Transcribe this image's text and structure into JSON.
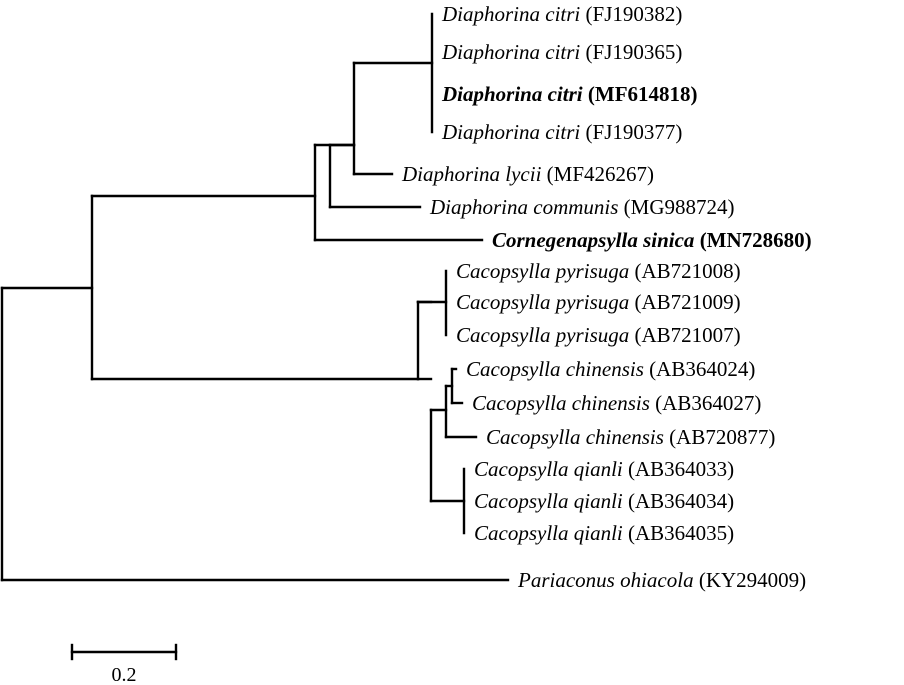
{
  "tree": {
    "leaves": [
      {
        "id": "dc1",
        "name": "Diaphorina citri",
        "accession": "(FJ190382)",
        "bold": false
      },
      {
        "id": "dc2",
        "name": "Diaphorina citri",
        "accession": "(FJ190365)",
        "bold": false
      },
      {
        "id": "dc3",
        "name": "Diaphorina citri",
        "accession": "(MF614818)",
        "bold": true
      },
      {
        "id": "dc4",
        "name": "Diaphorina citri",
        "accession": "(FJ190377)",
        "bold": false
      },
      {
        "id": "dl",
        "name": "Diaphorina lycii",
        "accession": "(MF426267)",
        "bold": false
      },
      {
        "id": "dcom",
        "name": "Diaphorina communis",
        "accession": "(MG988724)",
        "bold": false
      },
      {
        "id": "cs",
        "name": "Cornegenapsylla sinica",
        "accession": "(MN728680)",
        "bold": true
      },
      {
        "id": "cp1",
        "name": "Cacopsylla pyrisuga",
        "accession": "(AB721008)",
        "bold": false
      },
      {
        "id": "cp2",
        "name": "Cacopsylla pyrisuga",
        "accession": "(AB721009)",
        "bold": false
      },
      {
        "id": "cp3",
        "name": "Cacopsylla pyrisuga",
        "accession": "(AB721007)",
        "bold": false
      },
      {
        "id": "cc1",
        "name": "Cacopsylla chinensis",
        "accession": "(AB364024)",
        "bold": false
      },
      {
        "id": "cc2",
        "name": "Cacopsylla chinensis",
        "accession": "(AB364027)",
        "bold": false
      },
      {
        "id": "cc3",
        "name": "Cacopsylla chinensis",
        "accession": "(AB720877)",
        "bold": false
      },
      {
        "id": "cq1",
        "name": "Cacopsylla qianli",
        "accession": "(AB364033)",
        "bold": false
      },
      {
        "id": "cq2",
        "name": "Cacopsylla qianli",
        "accession": "(AB364034)",
        "bold": false
      },
      {
        "id": "cq3",
        "name": "Cacopsylla qianli",
        "accession": "(AB364035)",
        "bold": false
      },
      {
        "id": "po",
        "name": "Pariaconus ohiacola",
        "accession": "(KY294009)",
        "bold": false
      }
    ]
  },
  "scale_bar": {
    "value": 0.2,
    "label": "0.2"
  }
}
